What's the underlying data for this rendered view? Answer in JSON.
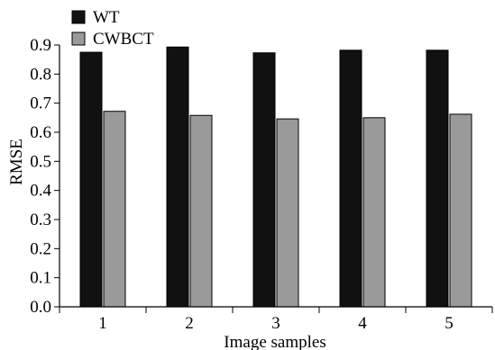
{
  "chart_data": {
    "type": "bar",
    "title": "",
    "xlabel": "Image samples",
    "ylabel": "RMSE",
    "categories": [
      "1",
      "2",
      "3",
      "4",
      "5"
    ],
    "series": [
      {
        "name": "WT",
        "values": [
          0.875,
          0.893,
          0.873,
          0.882,
          0.882
        ],
        "color": "#111111"
      },
      {
        "name": "CWBCT",
        "values": [
          0.672,
          0.658,
          0.646,
          0.65,
          0.662
        ],
        "color": "#9a9a9a"
      }
    ],
    "ylim": [
      0,
      0.9
    ],
    "yticks": [
      "0.0",
      "0.1",
      "0.2",
      "0.3",
      "0.4",
      "0.5",
      "0.6",
      "0.7",
      "0.8",
      "0.9"
    ],
    "legend_position": "top-left",
    "grid": false
  }
}
